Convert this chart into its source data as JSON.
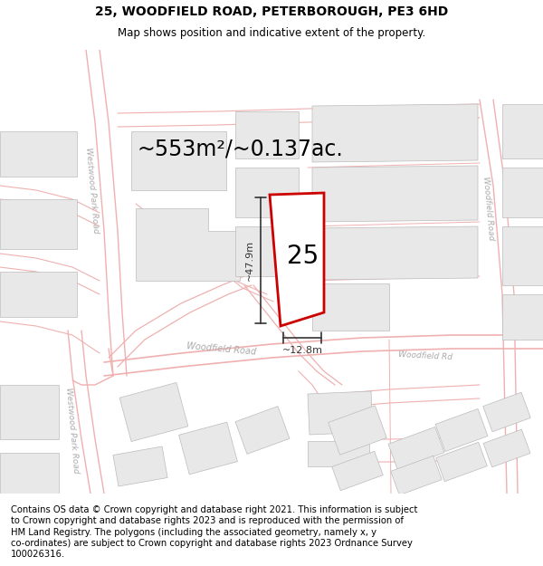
{
  "title": "25, WOODFIELD ROAD, PETERBOROUGH, PE3 6HD",
  "subtitle": "Map shows position and indicative extent of the property.",
  "area_text": "~553m²/~0.137ac.",
  "width_label": "~12.8m",
  "height_label": "~47.9m",
  "number_label": "25",
  "footer_lines": [
    "Contains OS data © Crown copyright and database right 2021. This information is subject",
    "to Crown copyright and database rights 2023 and is reproduced with the permission of",
    "HM Land Registry. The polygons (including the associated geometry, namely x, y",
    "co-ordinates) are subject to Crown copyright and database rights 2023 Ordnance Survey",
    "100026316."
  ],
  "map_bg": "#ffffff",
  "road_color": "#f0b0b0",
  "road_lw": 0.8,
  "building_fill": "#e8e8e8",
  "building_edge": "#bbbbbb",
  "plot_edge": "#cc0000",
  "plot_fill": "#ffffff",
  "dim_color": "#333333",
  "label_color": "#aaaaaa",
  "title_fs": 10,
  "subtitle_fs": 8.5,
  "area_fs": 17,
  "num_fs": 20,
  "dim_fs": 8,
  "footer_fs": 7.2
}
